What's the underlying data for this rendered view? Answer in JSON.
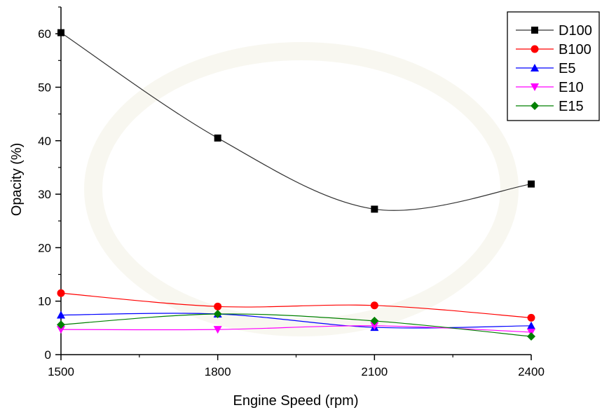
{
  "chart_data": {
    "type": "line",
    "title": "",
    "xlabel": "Engine Speed (rpm)",
    "ylabel": "Opacity (%)",
    "x": [
      1500,
      1800,
      2100,
      2400
    ],
    "xticks": [
      "1500",
      "1800",
      "2100",
      "2400"
    ],
    "yticks": [
      "0",
      "10",
      "20",
      "30",
      "40",
      "50",
      "60"
    ],
    "xlim": [
      1500,
      2400
    ],
    "ylim": [
      0,
      65
    ],
    "grid": false,
    "legend_position": "top-right",
    "series": [
      {
        "name": "D100",
        "values": [
          60.2,
          40.5,
          27.2,
          31.9
        ],
        "color": "#000000",
        "line_color": "#333333",
        "marker": "square"
      },
      {
        "name": "B100",
        "values": [
          11.5,
          9.0,
          9.2,
          6.9
        ],
        "color": "#ff0000",
        "line_color": "#ff0000",
        "marker": "circle"
      },
      {
        "name": "E5",
        "values": [
          7.4,
          7.6,
          5.1,
          5.4
        ],
        "color": "#0000ff",
        "line_color": "#0000ff",
        "marker": "triangle-up"
      },
      {
        "name": "E10",
        "values": [
          4.7,
          4.7,
          5.4,
          4.2
        ],
        "color": "#ff00ff",
        "line_color": "#ff00ff",
        "marker": "triangle-down"
      },
      {
        "name": "E15",
        "values": [
          5.6,
          7.6,
          6.3,
          3.4
        ],
        "color": "#008000",
        "line_color": "#008000",
        "marker": "diamond"
      }
    ]
  }
}
